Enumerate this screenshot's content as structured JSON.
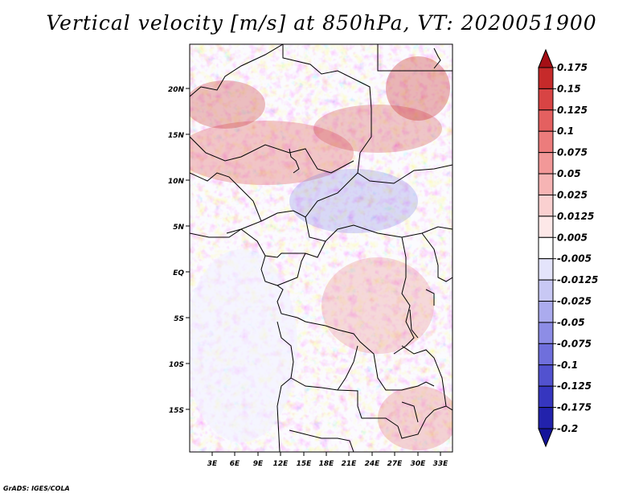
{
  "title": "Vertical velocity [m/s] at 850hPa, VT: 2020051900",
  "credit": "GrADS: IGES/COLA",
  "map": {
    "lat_ticks": [
      "20N",
      "15N",
      "10N",
      "5N",
      "EQ",
      "5S",
      "10S",
      "15S"
    ],
    "lon_ticks": [
      "3E",
      "6E",
      "9E",
      "12E",
      "15E",
      "18E",
      "21E",
      "24E",
      "27E",
      "30E",
      "33E"
    ],
    "lat_range": [
      -20,
      25
    ],
    "lon_range": [
      0,
      34.5
    ]
  },
  "colorbar": {
    "levels": [
      "0.175",
      "0.15",
      "0.125",
      "0.1",
      "0.075",
      "0.05",
      "0.025",
      "0.0125",
      "0.005",
      "-0.005",
      "-0.0125",
      "-0.025",
      "-0.05",
      "-0.075",
      "-0.1",
      "-0.125",
      "-0.175",
      "-0.2"
    ],
    "colors": [
      "#a50f15",
      "#c62a2a",
      "#d84444",
      "#e46060",
      "#ec7c7c",
      "#f29898",
      "#f6b4b4",
      "#fad0d0",
      "#fde8e8",
      "#ffffff",
      "#e4e4fb",
      "#c8c8f4",
      "#ababee",
      "#8d8de6",
      "#6f6fdc",
      "#5252cf",
      "#3636bf",
      "#2222ac",
      "#14149a"
    ]
  }
}
